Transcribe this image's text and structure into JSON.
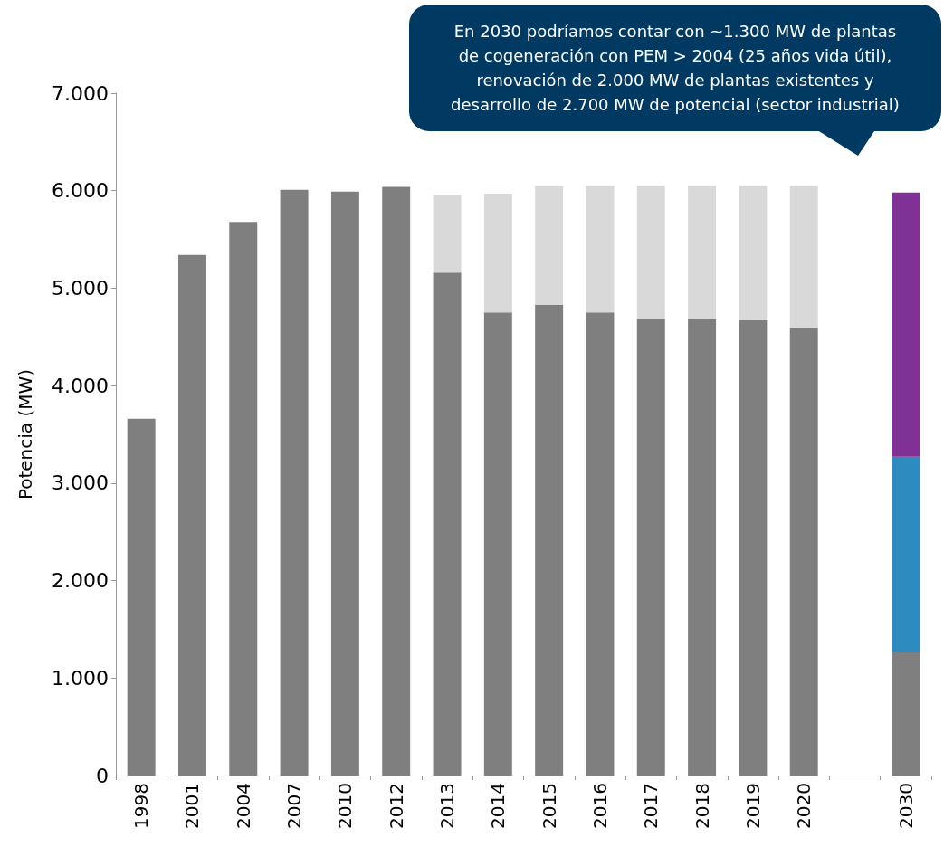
{
  "chart_data": {
    "type": "bar",
    "stacked": true,
    "ylabel": "Potencia (MW)",
    "categories": [
      "1998",
      "2001",
      "2004",
      "2007",
      "2010",
      "2012",
      "2013",
      "2014",
      "2015",
      "2016",
      "2017",
      "2018",
      "2019",
      "2020",
      null,
      "2030"
    ],
    "series": [
      {
        "color": "#7f7f7f",
        "values": [
          3660,
          5340,
          5680,
          6010,
          5990,
          6040,
          5160,
          4750,
          4830,
          4750,
          4690,
          4680,
          4670,
          4590,
          null,
          1270
        ]
      },
      {
        "color": "#d9d9d9",
        "values": [
          null,
          null,
          null,
          null,
          null,
          null,
          800,
          1220,
          1220,
          1300,
          1360,
          1370,
          1380,
          1460,
          null,
          null
        ]
      },
      {
        "color": "#2e8bc0",
        "values": [
          null,
          null,
          null,
          null,
          null,
          null,
          null,
          null,
          null,
          null,
          null,
          null,
          null,
          null,
          null,
          2000
        ]
      },
      {
        "color": "#7f3195",
        "values": [
          null,
          null,
          null,
          null,
          null,
          null,
          null,
          null,
          null,
          null,
          null,
          null,
          null,
          null,
          null,
          2710
        ]
      }
    ],
    "ylim": [
      0,
      7000
    ],
    "yticks": [
      {
        "value": 0,
        "label": "0"
      },
      {
        "value": 1000,
        "label": "1.000"
      },
      {
        "value": 2000,
        "label": "2.000"
      },
      {
        "value": 3000,
        "label": "3.000"
      },
      {
        "value": 4000,
        "label": "4.000"
      },
      {
        "value": 5000,
        "label": "5.000"
      },
      {
        "value": 6000,
        "label": "6.000"
      },
      {
        "value": 7000,
        "label": "7.000"
      }
    ],
    "grid": false,
    "annotations": [
      "En 2030 podríamos contar con ~1.300 MW de plantas\nde cogeneración con PEM > 2004 (25 años vida útil),\nrenovación de 2.000 MW de plantas existentes y\ndesarrollo de 2.700 MW de potencial (sector industrial)"
    ]
  }
}
